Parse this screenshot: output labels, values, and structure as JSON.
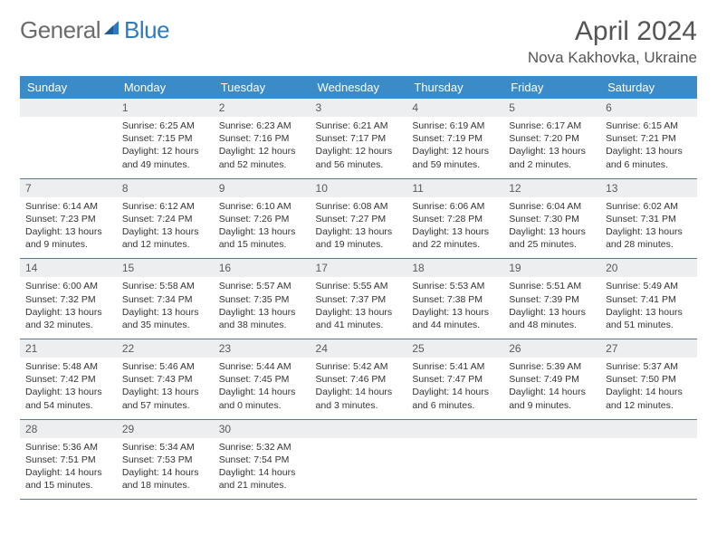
{
  "brand": {
    "part1": "General",
    "part2": "Blue"
  },
  "title": "April 2024",
  "location": "Nova Kakhovka, Ukraine",
  "colors": {
    "header_bg": "#3b8bc9",
    "logo_blue": "#2f7bbf",
    "text": "#333333",
    "daynum_bg": "#eceeef"
  },
  "weekdays": [
    "Sunday",
    "Monday",
    "Tuesday",
    "Wednesday",
    "Thursday",
    "Friday",
    "Saturday"
  ],
  "weeks": [
    [
      null,
      {
        "n": "1",
        "sr": "6:25 AM",
        "ss": "7:15 PM",
        "dh": "12",
        "dm": "49"
      },
      {
        "n": "2",
        "sr": "6:23 AM",
        "ss": "7:16 PM",
        "dh": "12",
        "dm": "52"
      },
      {
        "n": "3",
        "sr": "6:21 AM",
        "ss": "7:17 PM",
        "dh": "12",
        "dm": "56"
      },
      {
        "n": "4",
        "sr": "6:19 AM",
        "ss": "7:19 PM",
        "dh": "12",
        "dm": "59"
      },
      {
        "n": "5",
        "sr": "6:17 AM",
        "ss": "7:20 PM",
        "dh": "13",
        "dm": "2"
      },
      {
        "n": "6",
        "sr": "6:15 AM",
        "ss": "7:21 PM",
        "dh": "13",
        "dm": "6"
      }
    ],
    [
      {
        "n": "7",
        "sr": "6:14 AM",
        "ss": "7:23 PM",
        "dh": "13",
        "dm": "9"
      },
      {
        "n": "8",
        "sr": "6:12 AM",
        "ss": "7:24 PM",
        "dh": "13",
        "dm": "12"
      },
      {
        "n": "9",
        "sr": "6:10 AM",
        "ss": "7:26 PM",
        "dh": "13",
        "dm": "15"
      },
      {
        "n": "10",
        "sr": "6:08 AM",
        "ss": "7:27 PM",
        "dh": "13",
        "dm": "19"
      },
      {
        "n": "11",
        "sr": "6:06 AM",
        "ss": "7:28 PM",
        "dh": "13",
        "dm": "22"
      },
      {
        "n": "12",
        "sr": "6:04 AM",
        "ss": "7:30 PM",
        "dh": "13",
        "dm": "25"
      },
      {
        "n": "13",
        "sr": "6:02 AM",
        "ss": "7:31 PM",
        "dh": "13",
        "dm": "28"
      }
    ],
    [
      {
        "n": "14",
        "sr": "6:00 AM",
        "ss": "7:32 PM",
        "dh": "13",
        "dm": "32"
      },
      {
        "n": "15",
        "sr": "5:58 AM",
        "ss": "7:34 PM",
        "dh": "13",
        "dm": "35"
      },
      {
        "n": "16",
        "sr": "5:57 AM",
        "ss": "7:35 PM",
        "dh": "13",
        "dm": "38"
      },
      {
        "n": "17",
        "sr": "5:55 AM",
        "ss": "7:37 PM",
        "dh": "13",
        "dm": "41"
      },
      {
        "n": "18",
        "sr": "5:53 AM",
        "ss": "7:38 PM",
        "dh": "13",
        "dm": "44"
      },
      {
        "n": "19",
        "sr": "5:51 AM",
        "ss": "7:39 PM",
        "dh": "13",
        "dm": "48"
      },
      {
        "n": "20",
        "sr": "5:49 AM",
        "ss": "7:41 PM",
        "dh": "13",
        "dm": "51"
      }
    ],
    [
      {
        "n": "21",
        "sr": "5:48 AM",
        "ss": "7:42 PM",
        "dh": "13",
        "dm": "54"
      },
      {
        "n": "22",
        "sr": "5:46 AM",
        "ss": "7:43 PM",
        "dh": "13",
        "dm": "57"
      },
      {
        "n": "23",
        "sr": "5:44 AM",
        "ss": "7:45 PM",
        "dh": "14",
        "dm": "0"
      },
      {
        "n": "24",
        "sr": "5:42 AM",
        "ss": "7:46 PM",
        "dh": "14",
        "dm": "3"
      },
      {
        "n": "25",
        "sr": "5:41 AM",
        "ss": "7:47 PM",
        "dh": "14",
        "dm": "6"
      },
      {
        "n": "26",
        "sr": "5:39 AM",
        "ss": "7:49 PM",
        "dh": "14",
        "dm": "9"
      },
      {
        "n": "27",
        "sr": "5:37 AM",
        "ss": "7:50 PM",
        "dh": "14",
        "dm": "12"
      }
    ],
    [
      {
        "n": "28",
        "sr": "5:36 AM",
        "ss": "7:51 PM",
        "dh": "14",
        "dm": "15"
      },
      {
        "n": "29",
        "sr": "5:34 AM",
        "ss": "7:53 PM",
        "dh": "14",
        "dm": "18"
      },
      {
        "n": "30",
        "sr": "5:32 AM",
        "ss": "7:54 PM",
        "dh": "14",
        "dm": "21"
      },
      null,
      null,
      null,
      null
    ]
  ]
}
